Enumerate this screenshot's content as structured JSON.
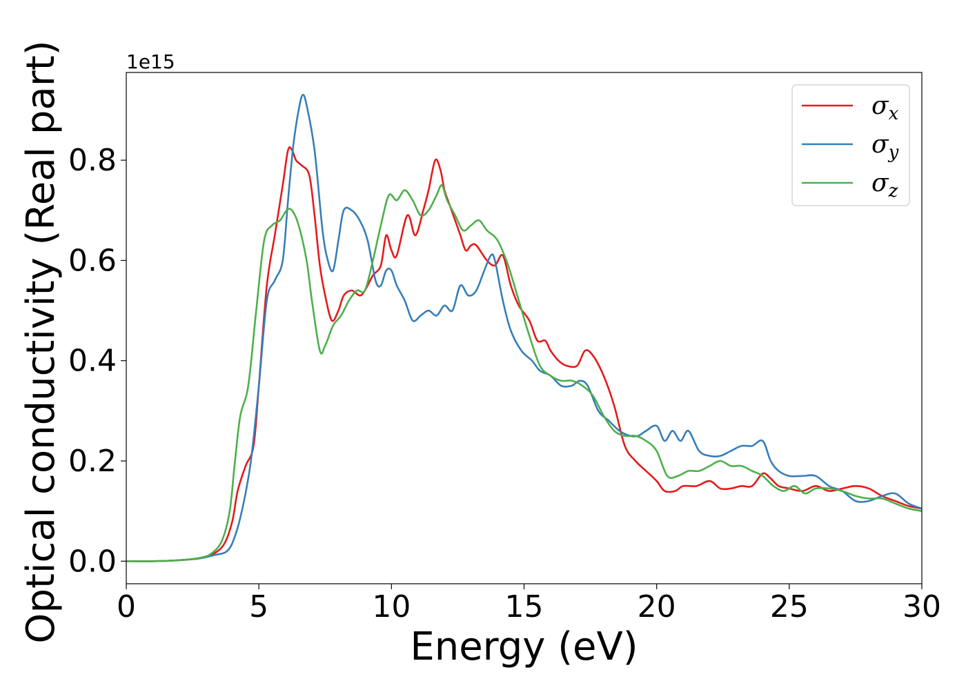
{
  "chart_data": {
    "type": "line",
    "title": "",
    "xlabel": "Energy (eV)",
    "ylabel": "Optical conductivity (Real part)",
    "y_offset_label": "1e15",
    "xlim": [
      0,
      30
    ],
    "ylim": [
      -0.045,
      0.975
    ],
    "xticks": [
      0,
      5,
      10,
      15,
      20,
      25,
      30
    ],
    "xtick_labels": [
      "0",
      "5",
      "10",
      "15",
      "20",
      "25",
      "30"
    ],
    "yticks": [
      0.0,
      0.2,
      0.4,
      0.6,
      0.8
    ],
    "ytick_labels": [
      "0.0",
      "0.2",
      "0.4",
      "0.6",
      "0.8"
    ],
    "grid": false,
    "legend_position": "top-right",
    "series": [
      {
        "name": "σ",
        "subscript": "x",
        "color": "#e41a1c",
        "x": [
          0,
          1,
          2,
          2.8,
          3.3,
          3.7,
          4.0,
          4.2,
          4.5,
          4.8,
          5.0,
          5.3,
          5.6,
          5.9,
          6.1,
          6.25,
          6.4,
          6.6,
          6.9,
          7.1,
          7.3,
          7.5,
          7.75,
          8.0,
          8.2,
          8.5,
          8.8,
          9.0,
          9.3,
          9.6,
          9.8,
          10.0,
          10.2,
          10.6,
          10.9,
          11.2,
          11.4,
          11.65,
          11.85,
          12.0,
          12.2,
          12.4,
          12.6,
          12.8,
          13.0,
          13.2,
          13.6,
          13.9,
          14.2,
          14.5,
          14.8,
          15.2,
          15.5,
          15.8,
          16.0,
          16.3,
          16.6,
          17.0,
          17.3,
          17.6,
          18.0,
          18.4,
          18.8,
          19.2,
          19.6,
          20.0,
          20.3,
          20.7,
          21.0,
          21.5,
          22.0,
          22.4,
          22.8,
          23.2,
          23.6,
          24.0,
          24.3,
          24.6,
          25.0,
          25.5,
          26.0,
          26.5,
          27.0,
          27.5,
          28.0,
          28.5,
          29.0,
          29.5,
          30.0
        ],
        "y": [
          0.0,
          0.0,
          0.002,
          0.006,
          0.015,
          0.035,
          0.08,
          0.14,
          0.19,
          0.23,
          0.35,
          0.55,
          0.65,
          0.75,
          0.82,
          0.82,
          0.8,
          0.79,
          0.77,
          0.69,
          0.59,
          0.53,
          0.48,
          0.5,
          0.53,
          0.54,
          0.53,
          0.54,
          0.57,
          0.59,
          0.65,
          0.62,
          0.61,
          0.69,
          0.65,
          0.7,
          0.74,
          0.8,
          0.78,
          0.74,
          0.71,
          0.68,
          0.65,
          0.62,
          0.63,
          0.63,
          0.6,
          0.59,
          0.61,
          0.55,
          0.51,
          0.48,
          0.44,
          0.44,
          0.42,
          0.4,
          0.39,
          0.39,
          0.42,
          0.41,
          0.37,
          0.31,
          0.23,
          0.2,
          0.18,
          0.16,
          0.14,
          0.14,
          0.15,
          0.15,
          0.16,
          0.145,
          0.145,
          0.15,
          0.15,
          0.175,
          0.165,
          0.15,
          0.145,
          0.14,
          0.15,
          0.14,
          0.145,
          0.15,
          0.145,
          0.13,
          0.12,
          0.11,
          0.105
        ]
      },
      {
        "name": "σ",
        "subscript": "y",
        "color": "#377eb8",
        "x": [
          0,
          1,
          2,
          2.8,
          3.3,
          3.8,
          4.1,
          4.4,
          4.7,
          5.0,
          5.3,
          5.6,
          5.9,
          6.1,
          6.3,
          6.5,
          6.65,
          6.8,
          7.1,
          7.4,
          7.6,
          7.8,
          8.0,
          8.2,
          8.5,
          8.8,
          9.1,
          9.4,
          9.6,
          9.8,
          10.0,
          10.2,
          10.5,
          10.8,
          11.1,
          11.4,
          11.7,
          12.0,
          12.3,
          12.6,
          12.9,
          13.2,
          13.5,
          13.75,
          13.9,
          14.2,
          14.5,
          14.9,
          15.3,
          15.6,
          16.0,
          16.4,
          16.8,
          17.1,
          17.4,
          17.8,
          18.2,
          18.6,
          19.0,
          19.3,
          19.6,
          20.0,
          20.3,
          20.6,
          20.9,
          21.2,
          21.6,
          22.0,
          22.4,
          22.8,
          23.2,
          23.6,
          24.0,
          24.3,
          24.6,
          25.0,
          25.5,
          26.0,
          26.5,
          27.0,
          27.5,
          28.0,
          28.5,
          29.0,
          29.5,
          30.0
        ],
        "y": [
          0.0,
          0.0,
          0.002,
          0.006,
          0.012,
          0.02,
          0.05,
          0.11,
          0.2,
          0.35,
          0.52,
          0.56,
          0.6,
          0.72,
          0.83,
          0.9,
          0.93,
          0.91,
          0.82,
          0.66,
          0.6,
          0.58,
          0.64,
          0.7,
          0.7,
          0.68,
          0.64,
          0.56,
          0.55,
          0.58,
          0.58,
          0.55,
          0.52,
          0.48,
          0.49,
          0.5,
          0.49,
          0.51,
          0.5,
          0.55,
          0.53,
          0.54,
          0.58,
          0.61,
          0.6,
          0.52,
          0.46,
          0.42,
          0.4,
          0.38,
          0.37,
          0.35,
          0.35,
          0.36,
          0.35,
          0.3,
          0.28,
          0.26,
          0.25,
          0.25,
          0.26,
          0.27,
          0.24,
          0.26,
          0.24,
          0.26,
          0.22,
          0.21,
          0.21,
          0.22,
          0.23,
          0.23,
          0.24,
          0.2,
          0.18,
          0.17,
          0.17,
          0.17,
          0.15,
          0.14,
          0.12,
          0.12,
          0.13,
          0.135,
          0.115,
          0.105
        ]
      },
      {
        "name": "σ",
        "subscript": "z",
        "color": "#4daf4a",
        "x": [
          0,
          1,
          2,
          2.8,
          3.2,
          3.6,
          3.9,
          4.1,
          4.3,
          4.6,
          4.9,
          5.2,
          5.5,
          5.8,
          6.05,
          6.25,
          6.5,
          6.8,
          7.0,
          7.3,
          7.5,
          7.8,
          8.1,
          8.4,
          8.7,
          9.0,
          9.3,
          9.6,
          9.9,
          10.2,
          10.5,
          10.8,
          11.1,
          11.4,
          11.7,
          11.9,
          12.1,
          12.4,
          12.7,
          13.0,
          13.3,
          13.6,
          14.0,
          14.4,
          14.8,
          15.2,
          15.6,
          16.0,
          16.4,
          16.8,
          17.2,
          17.6,
          18.0,
          18.4,
          18.8,
          19.2,
          19.6,
          20.0,
          20.4,
          20.8,
          21.2,
          21.6,
          22.0,
          22.4,
          22.8,
          23.2,
          23.6,
          24.0,
          24.4,
          24.8,
          25.2,
          25.6,
          26.0,
          26.5,
          27.0,
          27.5,
          28.0,
          28.5,
          29.0,
          29.5,
          30.0
        ],
        "y": [
          0.0,
          0.0,
          0.002,
          0.007,
          0.015,
          0.04,
          0.1,
          0.2,
          0.29,
          0.35,
          0.5,
          0.64,
          0.67,
          0.68,
          0.7,
          0.7,
          0.67,
          0.6,
          0.52,
          0.42,
          0.43,
          0.47,
          0.49,
          0.52,
          0.54,
          0.54,
          0.6,
          0.67,
          0.73,
          0.72,
          0.74,
          0.72,
          0.69,
          0.7,
          0.73,
          0.75,
          0.72,
          0.69,
          0.66,
          0.67,
          0.68,
          0.66,
          0.64,
          0.59,
          0.52,
          0.45,
          0.39,
          0.37,
          0.36,
          0.36,
          0.35,
          0.33,
          0.29,
          0.26,
          0.25,
          0.25,
          0.24,
          0.22,
          0.17,
          0.17,
          0.18,
          0.18,
          0.19,
          0.2,
          0.19,
          0.19,
          0.18,
          0.17,
          0.15,
          0.14,
          0.15,
          0.135,
          0.145,
          0.145,
          0.14,
          0.13,
          0.125,
          0.125,
          0.115,
          0.105,
          0.1
        ]
      }
    ]
  }
}
